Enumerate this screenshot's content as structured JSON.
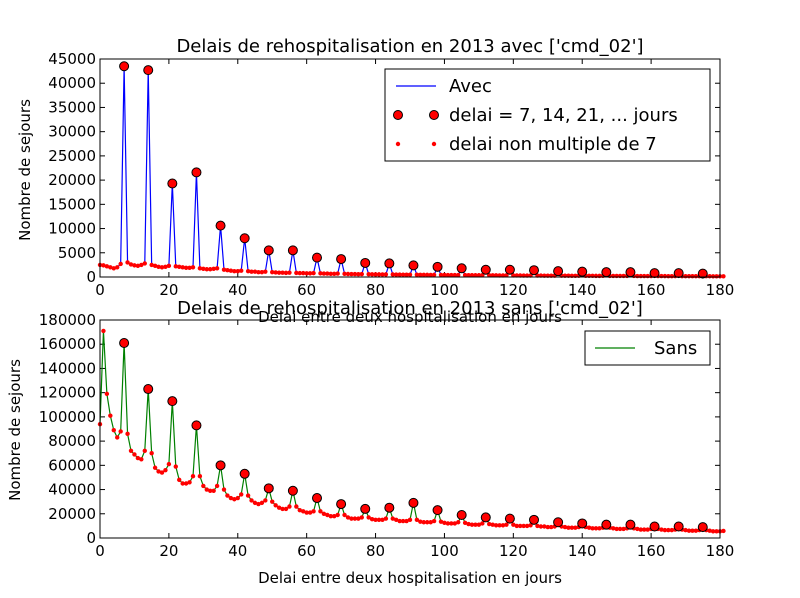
{
  "chart_data": [
    {
      "type": "line",
      "title": "Delais de rehospitalisation en 2013 avec ['cmd_02']",
      "xlabel": "Delai entre deux hospitalisation en jours",
      "ylabel": "Nombre de sejours",
      "xlim": [
        0,
        180
      ],
      "ylim": [
        0,
        45000
      ],
      "xticks": [
        "0",
        "20",
        "40",
        "60",
        "80",
        "100",
        "120",
        "140",
        "160",
        "180"
      ],
      "yticks": [
        "0",
        "5000",
        "10000",
        "15000",
        "20000",
        "25000",
        "30000",
        "35000",
        "40000",
        "45000"
      ],
      "legend_position": "top-right",
      "legend": [
        "Avec",
        "delai = 7, 14, 21, ... jours",
        "delai non multiple de 7"
      ],
      "colors": {
        "line": "#0000ff",
        "marker": "#ff0000"
      },
      "line_values": [
        2500,
        2400,
        2200,
        2000,
        1800,
        2000,
        2700,
        43500,
        3000,
        2600,
        2400,
        2300,
        2500,
        2800,
        42700,
        2500,
        2300,
        2100,
        2000,
        2100,
        2300,
        19300,
        2200,
        2100,
        2000,
        1900,
        1900,
        2000,
        21600,
        1800,
        1700,
        1600,
        1600,
        1700,
        1800,
        10600,
        1500,
        1400,
        1300,
        1200,
        1200,
        1300,
        8000,
        1200,
        1100,
        1100,
        1000,
        1000,
        1100,
        5500,
        1000,
        950,
        900,
        900,
        850,
        900,
        5500,
        850,
        800,
        800,
        750,
        750,
        800,
        4000,
        750,
        700,
        700,
        650,
        650,
        700,
        3700,
        650,
        620,
        600,
        600,
        580,
        600,
        2900,
        580,
        560,
        540,
        540,
        520,
        540,
        2800,
        520,
        500,
        490,
        480,
        470,
        480,
        2400,
        470,
        460,
        450,
        440,
        430,
        440,
        2100,
        430,
        420,
        410,
        400,
        390,
        400,
        1800,
        390,
        380,
        370,
        360,
        360,
        370,
        1500,
        360,
        350,
        340,
        330,
        330,
        340,
        1500,
        330,
        320,
        310,
        300,
        300,
        310,
        1400,
        300,
        290,
        280,
        280,
        270,
        280,
        1200,
        270,
        260,
        260,
        250,
        250,
        260,
        1100,
        250,
        240,
        240,
        230,
        230,
        240,
        1000,
        230,
        220,
        220,
        210,
        210,
        220,
        1000,
        210,
        200,
        200,
        190,
        190,
        200,
        800,
        190,
        185,
        180,
        175,
        175,
        180,
        800,
        175,
        170,
        165,
        160,
        160,
        165,
        700,
        160,
        155,
        150,
        150,
        145,
        150
      ]
    },
    {
      "type": "line",
      "title": "Delais de rehospitalisation en 2013 sans ['cmd_02']",
      "xlabel": "Delai entre deux hospitalisation en jours",
      "ylabel": "Nombre de sejours",
      "xlim": [
        0,
        180
      ],
      "ylim": [
        0,
        180000
      ],
      "xticks": [
        "0",
        "20",
        "40",
        "60",
        "80",
        "100",
        "120",
        "140",
        "160",
        "180"
      ],
      "yticks": [
        "0",
        "20000",
        "40000",
        "60000",
        "80000",
        "100000",
        "120000",
        "140000",
        "160000",
        "180000"
      ],
      "legend_position": "top-right",
      "legend": [
        "Sans"
      ],
      "colors": {
        "line": "#008000",
        "marker": "#ff0000"
      },
      "line_values": [
        94000,
        171000,
        119000,
        101000,
        89000,
        83000,
        88000,
        161000,
        86000,
        72000,
        69000,
        66000,
        65000,
        72000,
        123000,
        70000,
        58000,
        55000,
        54000,
        56000,
        61000,
        113000,
        59000,
        48000,
        45000,
        45000,
        46000,
        51000,
        93000,
        51000,
        43000,
        40000,
        39000,
        39000,
        43000,
        60000,
        40000,
        35000,
        33000,
        32000,
        33000,
        36000,
        53000,
        35000,
        31000,
        29000,
        28000,
        29000,
        31000,
        41000,
        30000,
        27000,
        25000,
        24000,
        24000,
        26000,
        39000,
        26000,
        23000,
        22000,
        21000,
        21000,
        22000,
        33000,
        22000,
        20000,
        19000,
        18000,
        18000,
        19000,
        28000,
        19000,
        17000,
        16000,
        16000,
        16000,
        17000,
        24000,
        17000,
        15500,
        15000,
        15000,
        15000,
        16000,
        25000,
        16000,
        15000,
        14000,
        14000,
        14000,
        15000,
        29000,
        15000,
        13500,
        13000,
        13000,
        13000,
        14000,
        23000,
        13500,
        12500,
        12000,
        12000,
        12000,
        13000,
        19000,
        12500,
        11500,
        11000,
        11000,
        11000,
        12000,
        17000,
        11500,
        11000,
        10500,
        10500,
        10500,
        11000,
        16000,
        11000,
        10000,
        10000,
        10000,
        10000,
        10500,
        15000,
        10000,
        9500,
        9500,
        9000,
        9000,
        9500,
        13000,
        9500,
        9000,
        8500,
        8500,
        8500,
        9000,
        12000,
        9000,
        8500,
        8000,
        8000,
        8000,
        8500,
        11000,
        8500,
        8000,
        7500,
        7500,
        7500,
        8000,
        11000,
        8000,
        7500,
        7000,
        7000,
        7000,
        7500,
        9500,
        7500,
        7000,
        6500,
        6500,
        6500,
        7000,
        9500,
        7000,
        6500,
        6000,
        6000,
        6000,
        6500,
        9000,
        6500,
        6000,
        5500,
        5500,
        5500,
        5800
      ]
    }
  ]
}
